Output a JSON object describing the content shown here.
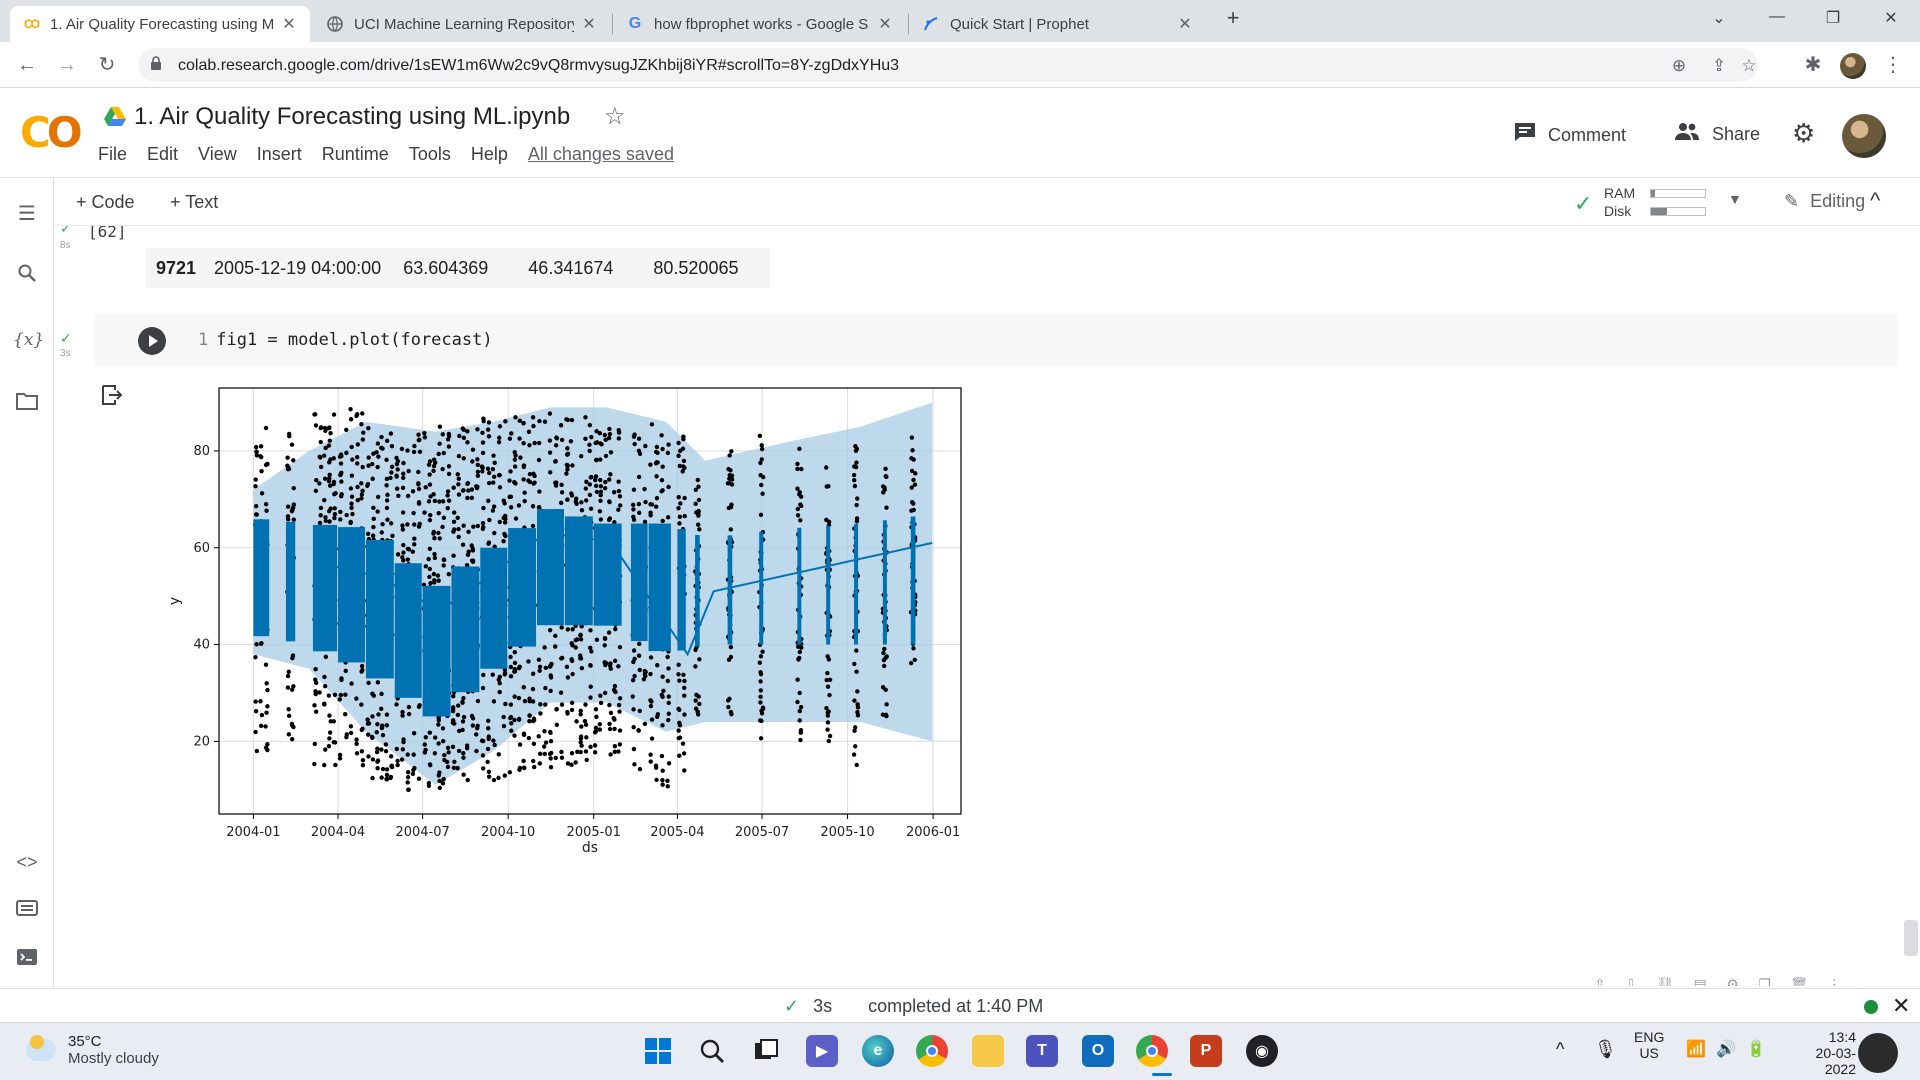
{
  "browser": {
    "tabs": [
      {
        "title": "1. Air Quality Forecasting using M",
        "favicon": "colab-icon",
        "active": true
      },
      {
        "title": "UCI Machine Learning Repository",
        "favicon": "uci-icon",
        "active": false
      },
      {
        "title": "how fbprophet works - Google S",
        "favicon": "google-icon",
        "active": false
      },
      {
        "title": "Quick Start | Prophet",
        "favicon": "prophet-icon",
        "active": false
      }
    ],
    "new_tab": "+",
    "url": "colab.research.google.com/drive/1sEW1m6Ww2c9vQ8rmvysugJZKhbij8iYR#scrollTo=8Y-zgDdxYHu3"
  },
  "colab": {
    "title": "1. Air Quality Forecasting using ML.ipynb",
    "menu": [
      "File",
      "Edit",
      "View",
      "Insert",
      "Runtime",
      "Tools",
      "Help"
    ],
    "saved_status": "All changes saved",
    "comment_label": "Comment",
    "share_label": "Share",
    "add_code": "+ Code",
    "add_text": "+ Text",
    "ram_label": "RAM",
    "disk_label": "Disk",
    "ram_usage": 0.08,
    "disk_usage": 0.3,
    "editing_label": "Editing",
    "accent": "#f9ab00"
  },
  "cell_prev": {
    "exec_count": "[62]",
    "runtime": "8s",
    "row": {
      "index": "9721",
      "ds": "2005-12-19 04:00:00",
      "yhat": "63.604369",
      "yhat_lower": "46.341674",
      "yhat_upper": "80.520065"
    }
  },
  "cell_plot": {
    "runtime": "3s",
    "line_no": "1",
    "code": "fig1 = model.plot(forecast)"
  },
  "chart_data": {
    "type": "scatter",
    "xlabel": "ds",
    "ylabel": "y",
    "x_ticks": [
      "2004-01",
      "2004-04",
      "2004-07",
      "2004-10",
      "2005-01",
      "2005-04",
      "2005-07",
      "2005-10",
      "2006-01"
    ],
    "y_ticks": [
      20,
      40,
      60,
      80
    ],
    "xlim": [
      "2003-11-25",
      "2006-01-31"
    ],
    "ylim": [
      5,
      93
    ],
    "grid": true,
    "colors": {
      "observed": "#000000",
      "forecast": "#0072b2",
      "interval": "#a8cbe6"
    },
    "trend": [
      {
        "x": "2004-03-10",
        "y": 57
      },
      {
        "x": "2004-05-15",
        "y": 54
      },
      {
        "x": "2004-07-20",
        "y": 47
      },
      {
        "x": "2004-09-10",
        "y": 54
      },
      {
        "x": "2004-11-10",
        "y": 63
      },
      {
        "x": "2004-12-25",
        "y": 62
      },
      {
        "x": "2005-01-20",
        "y": 61
      },
      {
        "x": "2005-04-12",
        "y": 38
      },
      {
        "x": "2005-05-10",
        "y": 51
      },
      {
        "x": "2005-12-31",
        "y": 61
      }
    ],
    "forecast_envelope": [
      {
        "x": "2004-01-01",
        "lower": 38,
        "upper": 72
      },
      {
        "x": "2004-03-01",
        "lower": 35,
        "upper": 80
      },
      {
        "x": "2004-05-01",
        "lower": 22,
        "upper": 86
      },
      {
        "x": "2004-07-15",
        "lower": 11,
        "upper": 84
      },
      {
        "x": "2004-09-15",
        "lower": 18,
        "upper": 86
      },
      {
        "x": "2004-11-15",
        "lower": 28,
        "upper": 89
      },
      {
        "x": "2005-01-15",
        "lower": 28,
        "upper": 89
      },
      {
        "x": "2005-03-20",
        "lower": 22,
        "upper": 86
      },
      {
        "x": "2005-05-01",
        "lower": 24,
        "upper": 78
      },
      {
        "x": "2005-08-01",
        "lower": 24,
        "upper": 82
      },
      {
        "x": "2005-10-15",
        "lower": 24,
        "upper": 85
      },
      {
        "x": "2005-12-31",
        "lower": 20,
        "upper": 90
      }
    ],
    "forecast_band_mean": [
      {
        "x": "2004-01-01",
        "lower": 42,
        "upper": 66
      },
      {
        "x": "2004-03-01",
        "lower": 40,
        "upper": 65
      },
      {
        "x": "2004-05-01",
        "lower": 35,
        "upper": 64
      },
      {
        "x": "2004-07-15",
        "lower": 25,
        "upper": 52
      },
      {
        "x": "2004-09-15",
        "lower": 35,
        "upper": 60
      },
      {
        "x": "2004-11-15",
        "lower": 44,
        "upper": 68
      },
      {
        "x": "2005-01-15",
        "lower": 44,
        "upper": 65
      },
      {
        "x": "2005-03-20",
        "lower": 38,
        "upper": 65
      },
      {
        "x": "2005-05-01",
        "lower": 40,
        "upper": 62
      },
      {
        "x": "2005-08-01",
        "lower": 40,
        "upper": 64
      },
      {
        "x": "2005-10-15",
        "lower": 40,
        "upper": 65
      },
      {
        "x": "2005-12-31",
        "lower": 40,
        "upper": 67
      }
    ],
    "observed_clusters": [
      {
        "x_start": "2004-01-01",
        "x_end": "2004-01-18",
        "low": 18,
        "high": 85
      },
      {
        "x_start": "2004-02-05",
        "x_end": "2004-02-15",
        "low": 18,
        "high": 84
      },
      {
        "x_start": "2004-03-05",
        "x_end": "2004-03-31",
        "low": 15,
        "high": 88
      },
      {
        "x_start": "2004-04-01",
        "x_end": "2004-04-30",
        "low": 14,
        "high": 89
      },
      {
        "x_start": "2004-05-01",
        "x_end": "2004-05-31",
        "low": 12,
        "high": 85
      },
      {
        "x_start": "2004-06-01",
        "x_end": "2004-06-30",
        "low": 10,
        "high": 84
      },
      {
        "x_start": "2004-07-01",
        "x_end": "2004-07-31",
        "low": 10,
        "high": 85
      },
      {
        "x_start": "2004-08-01",
        "x_end": "2004-08-31",
        "low": 12,
        "high": 86
      },
      {
        "x_start": "2004-09-01",
        "x_end": "2004-09-30",
        "low": 12,
        "high": 87
      },
      {
        "x_start": "2004-10-01",
        "x_end": "2004-10-31",
        "low": 13,
        "high": 88
      },
      {
        "x_start": "2004-11-01",
        "x_end": "2004-11-30",
        "low": 14,
        "high": 88
      },
      {
        "x_start": "2004-12-01",
        "x_end": "2004-12-31",
        "low": 15,
        "high": 87
      },
      {
        "x_start": "2005-01-01",
        "x_end": "2005-01-31",
        "low": 16,
        "high": 86
      },
      {
        "x_start": "2005-02-10",
        "x_end": "2005-02-28",
        "low": 14,
        "high": 86
      },
      {
        "x_start": "2005-03-01",
        "x_end": "2005-03-25",
        "low": 10,
        "high": 86
      },
      {
        "x_start": "2005-04-01",
        "x_end": "2005-04-10",
        "low": 13,
        "high": 84
      },
      {
        "x_start": "2005-04-20",
        "x_end": "2005-04-25",
        "low": 25,
        "high": 75
      },
      {
        "x_start": "2005-05-25",
        "x_end": "2005-05-30",
        "low": 25,
        "high": 80
      },
      {
        "x_start": "2005-06-28",
        "x_end": "2005-07-02",
        "low": 20,
        "high": 84
      },
      {
        "x_start": "2005-08-08",
        "x_end": "2005-08-12",
        "low": 15,
        "high": 83
      },
      {
        "x_start": "2005-09-08",
        "x_end": "2005-09-12",
        "low": 20,
        "high": 78
      },
      {
        "x_start": "2005-10-08",
        "x_end": "2005-10-12",
        "low": 14,
        "high": 81
      },
      {
        "x_start": "2005-11-08",
        "x_end": "2005-11-12",
        "low": 25,
        "high": 78
      },
      {
        "x_start": "2005-12-08",
        "x_end": "2005-12-13",
        "low": 35,
        "high": 83
      }
    ]
  },
  "status": {
    "runtime": "3s",
    "message": "completed at 1:40 PM"
  },
  "taskbar": {
    "temperature": "35°C",
    "weather": "Mostly cloudy",
    "lang": "ENG",
    "region": "US",
    "time": "13:4",
    "date": "20-03-2022"
  }
}
